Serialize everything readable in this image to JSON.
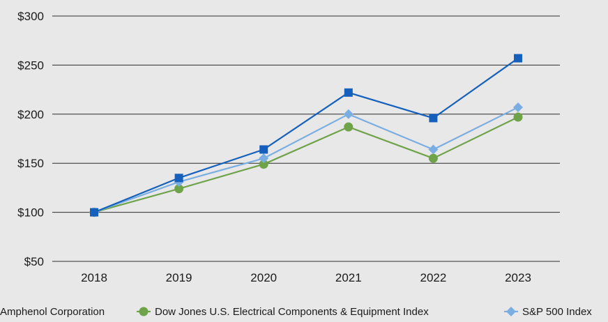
{
  "chart_data": {
    "type": "line",
    "title": "",
    "xlabel": "",
    "ylabel": "",
    "x": [
      "2018",
      "2019",
      "2020",
      "2021",
      "2022",
      "2023"
    ],
    "ylim": [
      50,
      300
    ],
    "yticks": [
      50,
      100,
      150,
      200,
      250,
      300
    ],
    "ytick_labels": [
      "$50",
      "$100",
      "$150",
      "$200",
      "$250",
      "$300"
    ],
    "grid": "horizontal",
    "legend_position": "bottom",
    "series": [
      {
        "name": "Amphenol Corporation",
        "values": [
          100,
          135,
          164,
          222,
          196,
          257
        ],
        "color": "#1560bd",
        "marker": "square"
      },
      {
        "name": "Dow Jones U.S. Electrical Components & Equipment Index",
        "values": [
          100,
          124,
          149,
          187,
          155,
          197
        ],
        "color": "#6fa34a",
        "marker": "circle"
      },
      {
        "name": "S&P 500 Index",
        "values": [
          100,
          131,
          155,
          200,
          164,
          207
        ],
        "color": "#7aaee3",
        "marker": "diamond"
      }
    ]
  }
}
